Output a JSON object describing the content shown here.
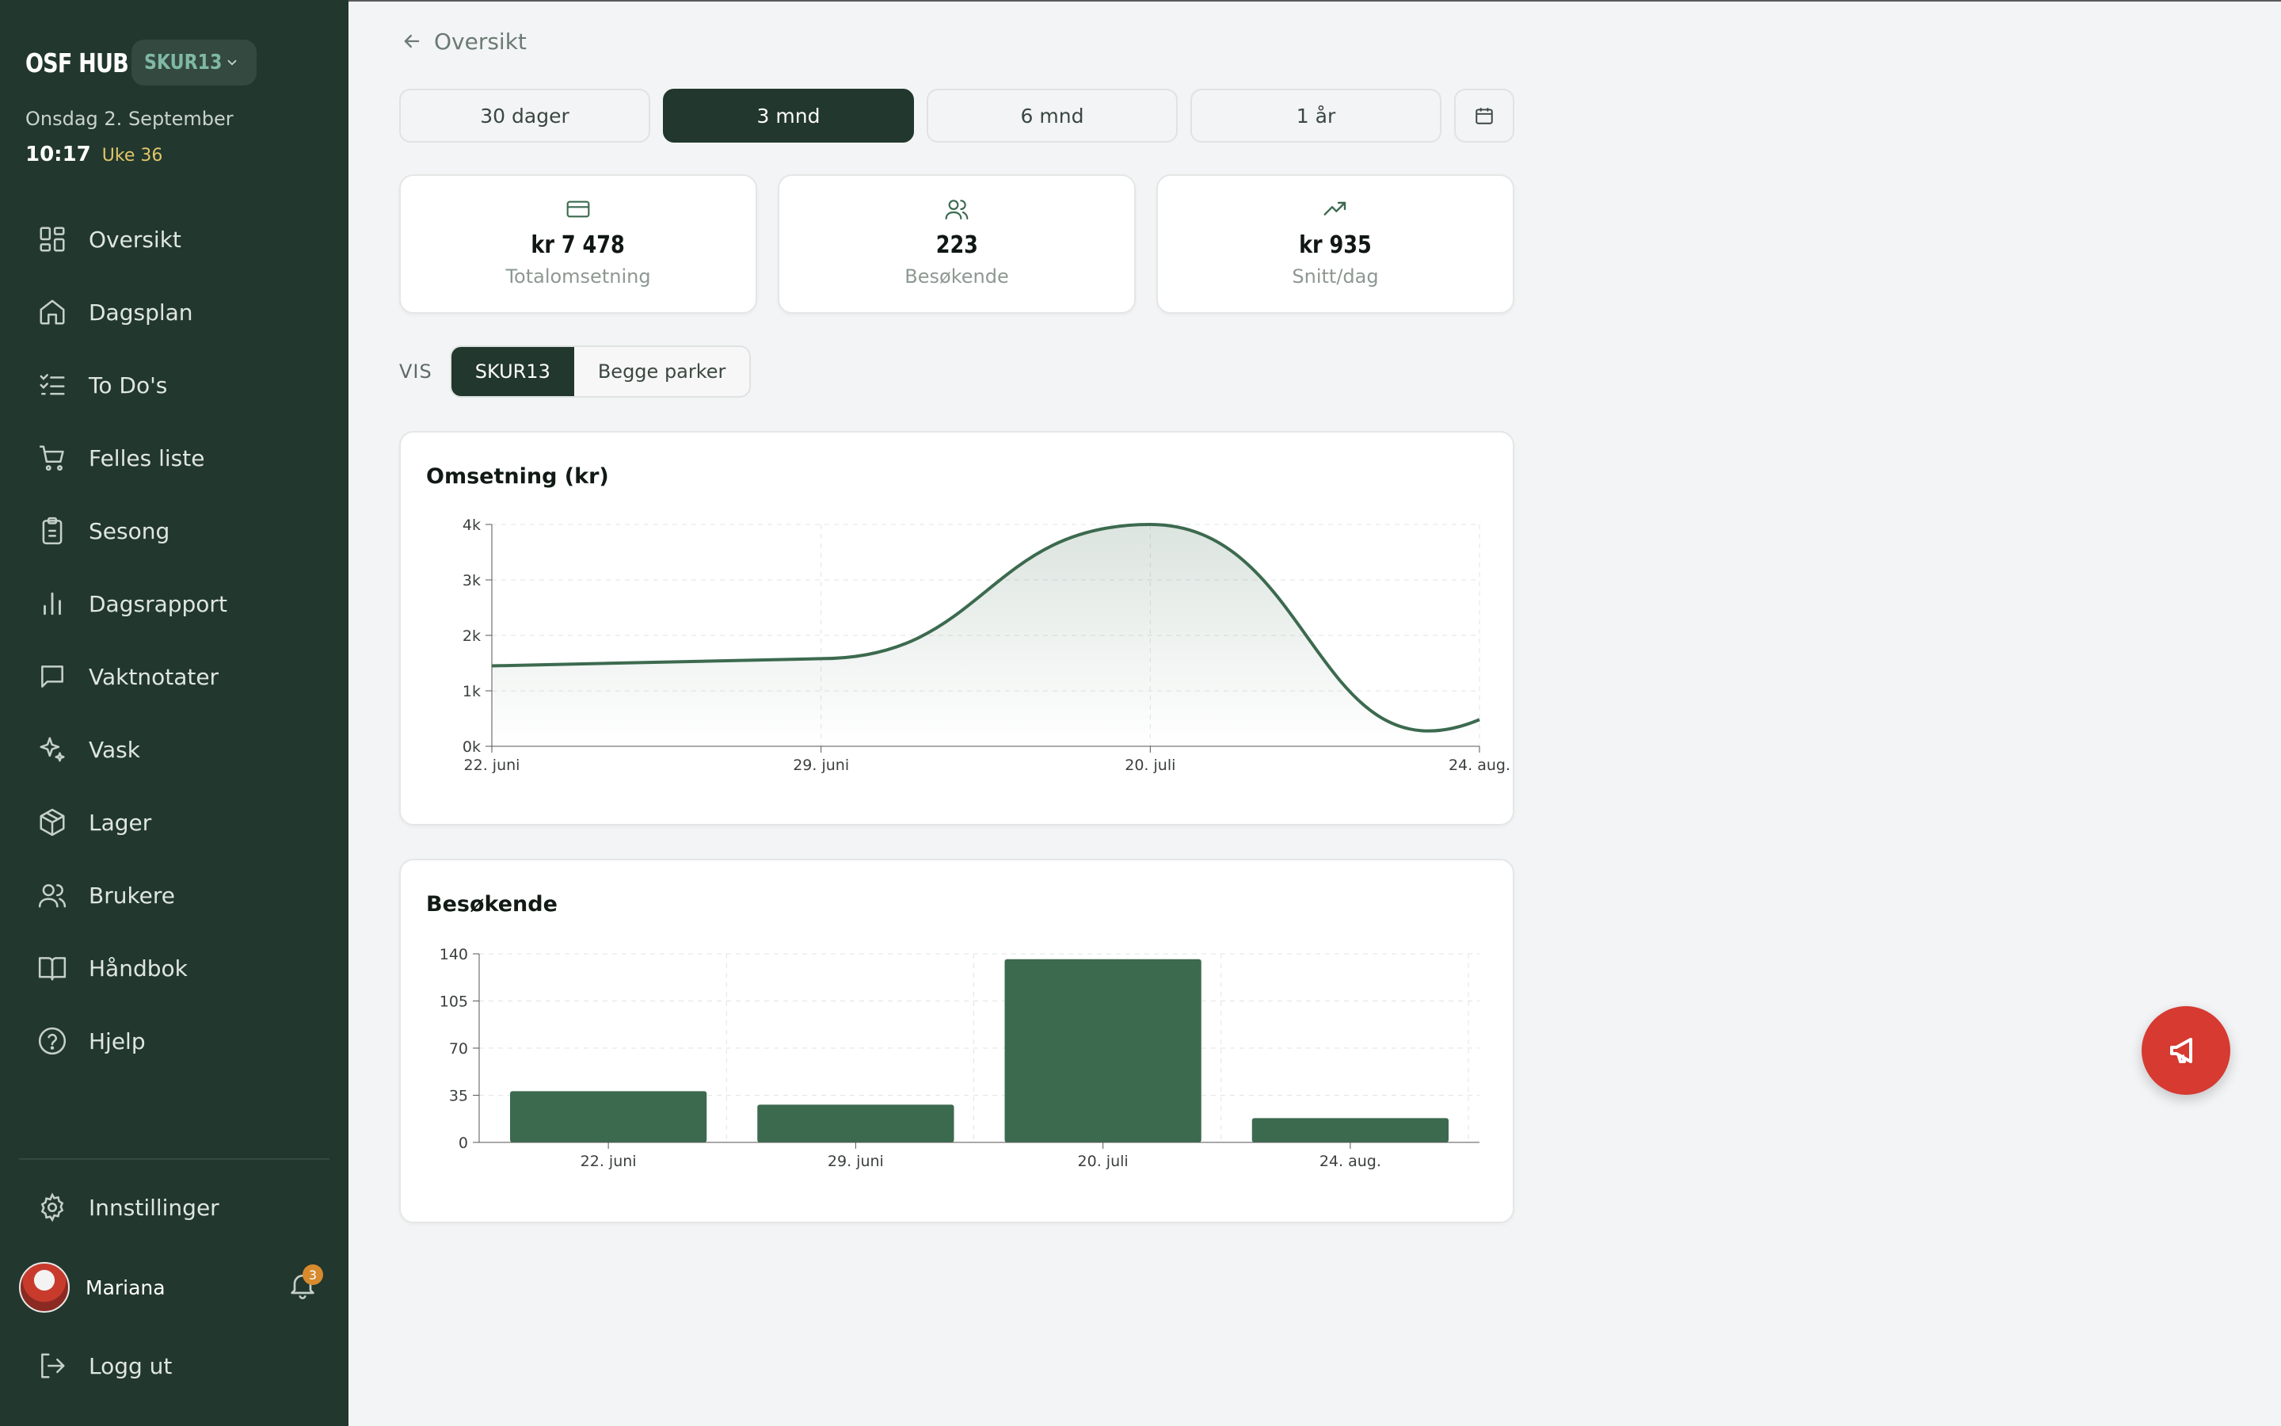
{
  "app": {
    "name": "OSF HUB",
    "park": "SKUR13"
  },
  "sidebar": {
    "date": "Onsdag 2. September",
    "time": "10:17",
    "week": "Uke 36",
    "items": [
      {
        "label": "Oversikt",
        "icon": "grid-icon"
      },
      {
        "label": "Dagsplan",
        "icon": "home-icon"
      },
      {
        "label": "To Do's",
        "icon": "checklist-icon"
      },
      {
        "label": "Felles liste",
        "icon": "cart-icon"
      },
      {
        "label": "Sesong",
        "icon": "clipboard-icon"
      },
      {
        "label": "Dagsrapport",
        "icon": "bar-chart-icon"
      },
      {
        "label": "Vaktnotater",
        "icon": "message-icon"
      },
      {
        "label": "Vask",
        "icon": "sparkle-icon"
      },
      {
        "label": "Lager",
        "icon": "box-icon"
      },
      {
        "label": "Brukere",
        "icon": "users-icon"
      },
      {
        "label": "Håndbok",
        "icon": "book-icon"
      },
      {
        "label": "Hjelp",
        "icon": "help-icon"
      }
    ],
    "settings": "Innstillinger",
    "user": "Mariana",
    "notifications": "3",
    "logout": "Logg ut"
  },
  "breadcrumb": "Oversikt",
  "ranges": [
    "30 dager",
    "3 mnd",
    "6 mnd",
    "1 år"
  ],
  "active_range": 1,
  "stats": [
    {
      "value": "kr 7 478",
      "label": "Totalomsetning",
      "icon": "card-icon"
    },
    {
      "value": "223",
      "label": "Besøkende",
      "icon": "users-icon"
    },
    {
      "value": "kr 935",
      "label": "Snitt/dag",
      "icon": "trending-up-icon"
    }
  ],
  "vis": {
    "label": "VIS",
    "options": [
      "SKUR13",
      "Begge parker"
    ],
    "active": 0
  },
  "colors": {
    "sidebar": "#22372d",
    "accent": "#3c6a4f",
    "fab": "#d63a30"
  },
  "chart_data": [
    {
      "type": "area",
      "title": "Omsetning (kr)",
      "categories": [
        "22. juni",
        "29. juni",
        "20. juli",
        "24. aug."
      ],
      "values": [
        1450,
        1580,
        4000,
        480
      ],
      "ylim": [
        0,
        4000
      ],
      "yticks": [
        "0k",
        "1k",
        "2k",
        "3k",
        "4k"
      ],
      "grid": true
    },
    {
      "type": "bar",
      "title": "Besøkende",
      "categories": [
        "22. juni",
        "29. juni",
        "20. juli",
        "24. aug."
      ],
      "values": [
        38,
        28,
        136,
        18
      ],
      "ylim": [
        0,
        140
      ],
      "yticks": [
        "0",
        "35",
        "70",
        "105",
        "140"
      ],
      "grid": true
    }
  ]
}
